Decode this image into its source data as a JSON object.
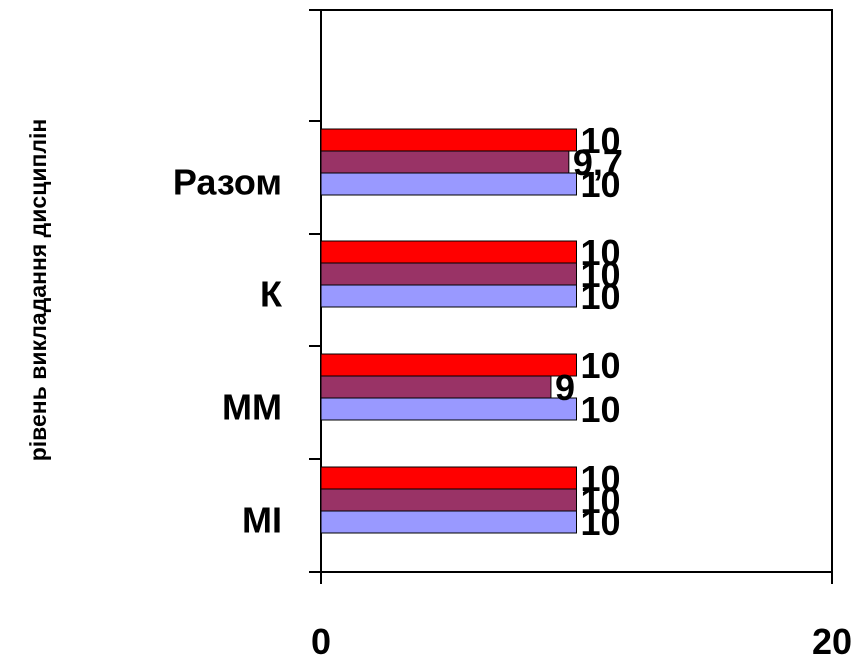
{
  "chart_data": {
    "type": "bar",
    "orientation": "horizontal",
    "title": "",
    "xlabel": "",
    "ylabel": "рівень викладання дисциплін",
    "xlim": [
      0,
      20
    ],
    "x_ticks": [
      "0",
      "20"
    ],
    "categories": [
      "МІ",
      "ММ",
      "К",
      "Разом"
    ],
    "series": [
      {
        "color": "#9999ff",
        "values": [
          10,
          10,
          10,
          10
        ],
        "labels": [
          "10",
          "10",
          "10",
          "10"
        ]
      },
      {
        "color": "#993366",
        "values": [
          10,
          9,
          10,
          9.7
        ],
        "labels": [
          "10",
          "9",
          "10",
          "9,7"
        ]
      },
      {
        "color": "#ff0000",
        "values": [
          10,
          10,
          10,
          10
        ],
        "labels": [
          "10",
          "10",
          "10",
          "10"
        ]
      }
    ],
    "grid": false,
    "legend": "none"
  }
}
